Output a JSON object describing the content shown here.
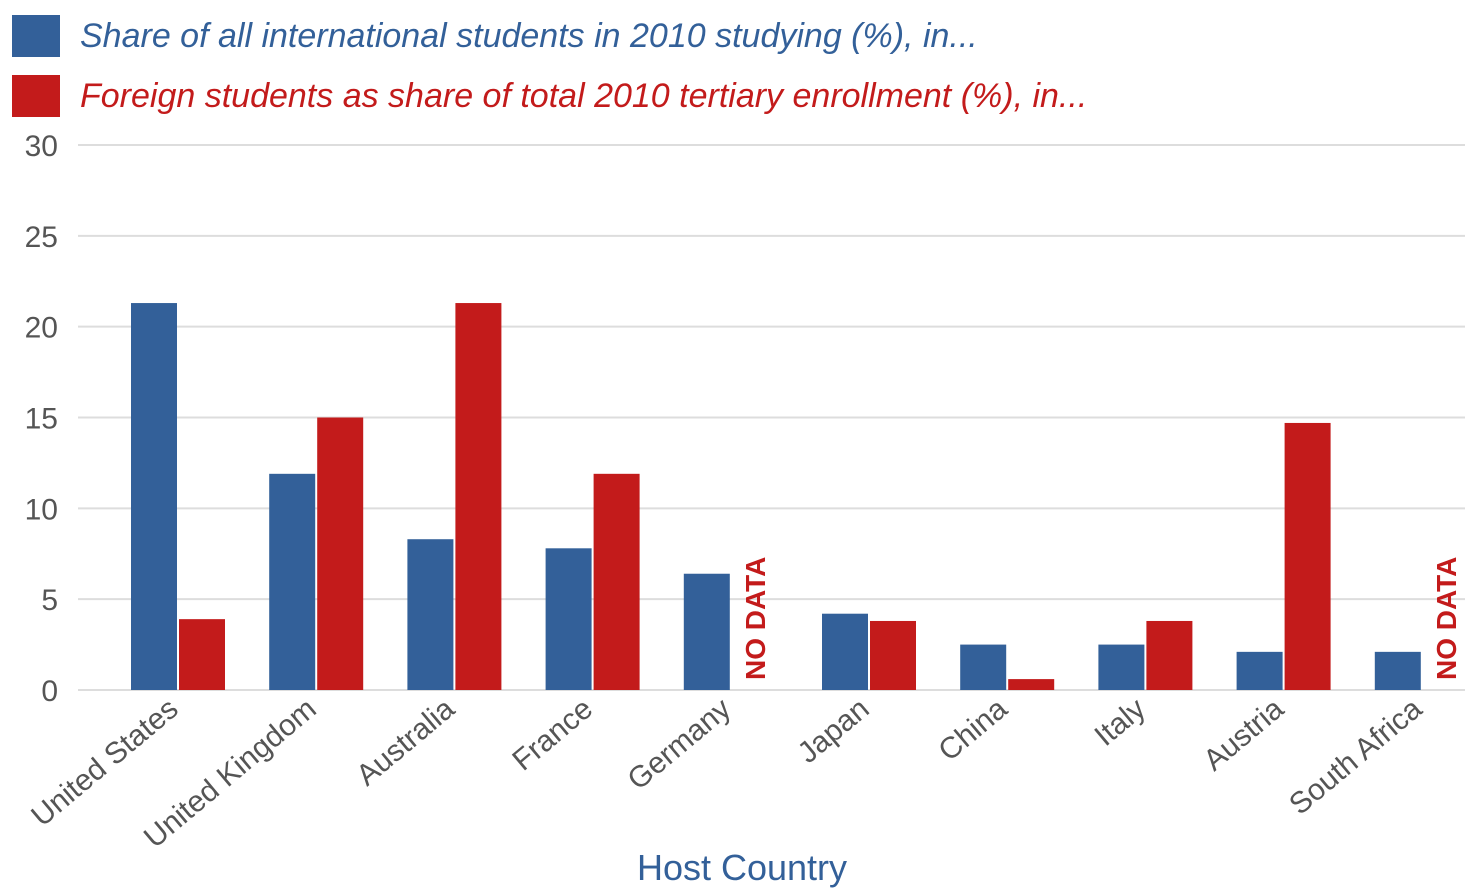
{
  "colors": {
    "series1": "#336099",
    "series2": "#c31b1b",
    "grid": "#dddddd",
    "tick": "#555555",
    "axis_title": "#336099"
  },
  "chart_data": {
    "type": "bar",
    "xlabel": "Host Country",
    "ylabel": "",
    "ylim": [
      0,
      30
    ],
    "yticks": [
      0,
      5,
      10,
      15,
      20,
      25,
      30
    ],
    "grid": true,
    "legend_position": "top-left",
    "categories": [
      "United States",
      "United Kingdom",
      "Australia",
      "France",
      "Germany",
      "Japan",
      "China",
      "Italy",
      "Austria",
      "South Africa"
    ],
    "series": [
      {
        "name": "Share of all international students in 2010 studying (%), in...",
        "values": [
          21.3,
          11.9,
          8.3,
          7.8,
          6.4,
          4.2,
          2.5,
          2.5,
          2.1,
          2.1
        ]
      },
      {
        "name": "Foreign students as share of total 2010 tertiary enrollment (%), in...",
        "values": [
          3.9,
          15.0,
          21.3,
          11.9,
          null,
          3.8,
          0.6,
          3.8,
          14.7,
          null
        ]
      }
    ],
    "missing_label": "NO DATA"
  }
}
